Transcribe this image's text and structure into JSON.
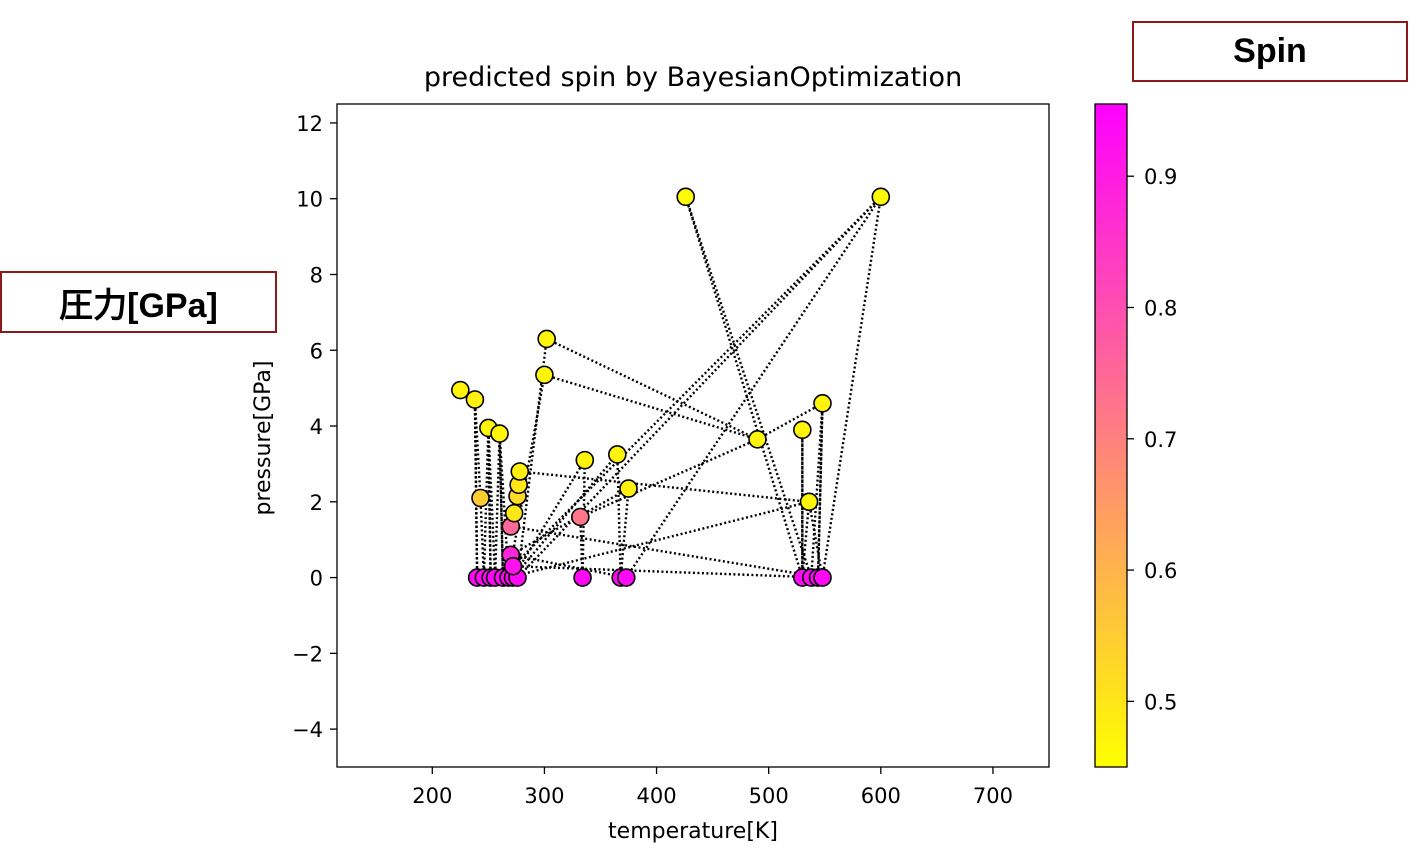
{
  "annotations": {
    "spin_box": "Spin",
    "pressure_box": "圧力[GPa]"
  },
  "chart_data": {
    "type": "scatter",
    "title": "predicted spin by BayesianOptimization",
    "xlabel": "temperature[K]",
    "ylabel": "pressure[GPa]",
    "xlim": [
      115,
      750
    ],
    "ylim": [
      -5,
      12.5
    ],
    "xticks": [
      200,
      300,
      400,
      500,
      600,
      700
    ],
    "yticks": [
      -4,
      -2,
      0,
      2,
      4,
      6,
      8,
      10,
      12
    ],
    "colorbar": {
      "ticks": [
        0.5,
        0.6,
        0.7,
        0.8,
        0.9
      ],
      "min": 0.45,
      "max": 0.955,
      "colormap": "spring_r",
      "color_low": "#ffff00",
      "color_high": "#ff00ff"
    },
    "connected_order": "dotted black line connects points in sampling order",
    "points": [
      {
        "x": 225,
        "y": 4.95,
        "spin": 0.47
      },
      {
        "x": 238,
        "y": 4.7,
        "spin": 0.48
      },
      {
        "x": 240,
        "y": 0.0,
        "spin": 0.94
      },
      {
        "x": 243,
        "y": 2.1,
        "spin": 0.55
      },
      {
        "x": 246,
        "y": 0.0,
        "spin": 0.94
      },
      {
        "x": 250,
        "y": 3.95,
        "spin": 0.47
      },
      {
        "x": 252,
        "y": 0.0,
        "spin": 0.94
      },
      {
        "x": 256,
        "y": 0.0,
        "spin": 0.94
      },
      {
        "x": 260,
        "y": 3.8,
        "spin": 0.47
      },
      {
        "x": 263,
        "y": 0.0,
        "spin": 0.94
      },
      {
        "x": 268,
        "y": 0.0,
        "spin": 0.94
      },
      {
        "x": 270,
        "y": 0.6,
        "spin": 0.88
      },
      {
        "x": 272,
        "y": 0.0,
        "spin": 0.94
      },
      {
        "x": 270,
        "y": 1.35,
        "spin": 0.75
      },
      {
        "x": 273,
        "y": 1.7,
        "spin": 0.5
      },
      {
        "x": 276,
        "y": 2.15,
        "spin": 0.52
      },
      {
        "x": 276,
        "y": 0.0,
        "spin": 0.94
      },
      {
        "x": 277,
        "y": 2.45,
        "spin": 0.5
      },
      {
        "x": 278,
        "y": 2.8,
        "spin": 0.48
      },
      {
        "x": 272,
        "y": 0.3,
        "spin": 0.92
      },
      {
        "x": 300,
        "y": 5.35,
        "spin": 0.47
      },
      {
        "x": 302,
        "y": 6.3,
        "spin": 0.47
      },
      {
        "x": 332,
        "y": 1.6,
        "spin": 0.72
      },
      {
        "x": 336,
        "y": 3.1,
        "spin": 0.47
      },
      {
        "x": 334,
        "y": 0.0,
        "spin": 0.94
      },
      {
        "x": 365,
        "y": 3.25,
        "spin": 0.47
      },
      {
        "x": 368,
        "y": 0.0,
        "spin": 0.94
      },
      {
        "x": 375,
        "y": 2.35,
        "spin": 0.48
      },
      {
        "x": 373,
        "y": 0.0,
        "spin": 0.94
      },
      {
        "x": 426,
        "y": 10.05,
        "spin": 0.46
      },
      {
        "x": 490,
        "y": 3.65,
        "spin": 0.47
      },
      {
        "x": 530,
        "y": 3.9,
        "spin": 0.47
      },
      {
        "x": 530,
        "y": 0.0,
        "spin": 0.94
      },
      {
        "x": 536,
        "y": 2.0,
        "spin": 0.47
      },
      {
        "x": 538,
        "y": 0.0,
        "spin": 0.94
      },
      {
        "x": 544,
        "y": 0.0,
        "spin": 0.94
      },
      {
        "x": 548,
        "y": 4.6,
        "spin": 0.47
      },
      {
        "x": 548,
        "y": 0.0,
        "spin": 0.94
      },
      {
        "x": 600,
        "y": 10.05,
        "spin": 0.46
      }
    ],
    "path_order": [
      0,
      1,
      2,
      1,
      3,
      4,
      5,
      6,
      5,
      7,
      8,
      9,
      8,
      10,
      20,
      30,
      36,
      35,
      36,
      34,
      29,
      32,
      31,
      32,
      33,
      37,
      38,
      16,
      21,
      30,
      22,
      24,
      23,
      12,
      25,
      26,
      27,
      11,
      28,
      38,
      19,
      37,
      13,
      14,
      15,
      17,
      18,
      33,
      10,
      12,
      16
    ]
  }
}
